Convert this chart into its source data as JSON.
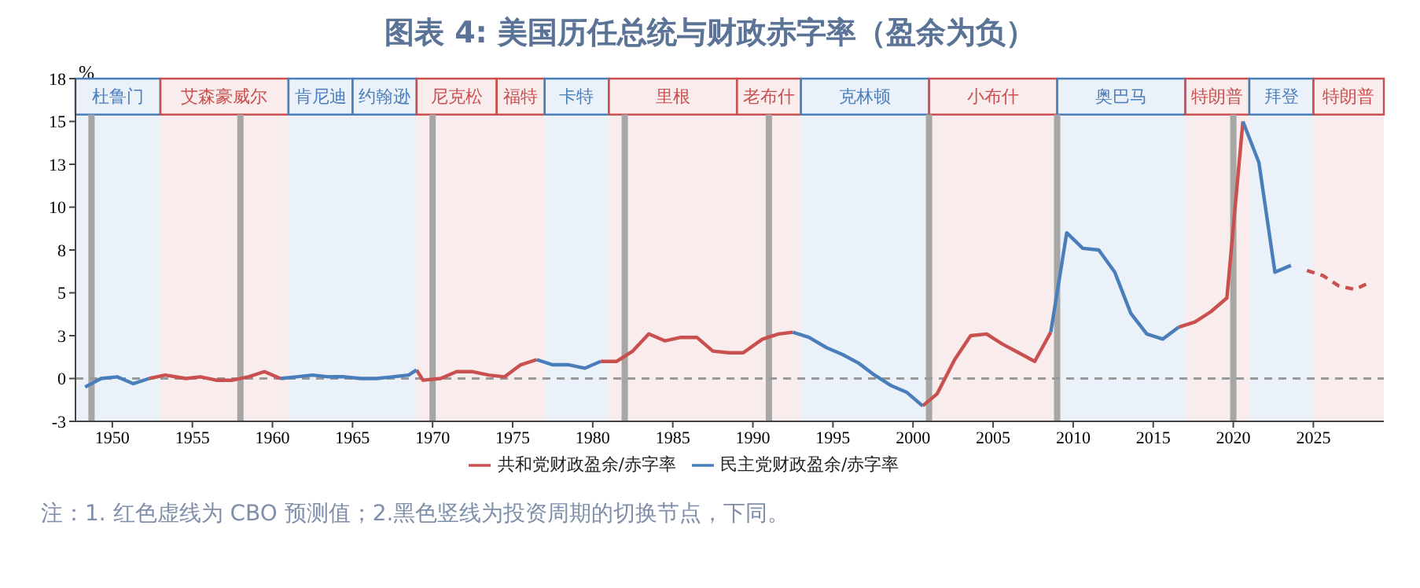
{
  "chart_data": {
    "type": "line",
    "title": "图表 4: 美国历任总统与财政赤字率（盈余为负）",
    "ylabel": "%",
    "annotations": [
      "注：1. 红色虚线为 CBO 预测值；2.黑色竖线为投资周期的切换节点，下同。"
    ],
    "xlim": [
      1947.7,
      2029.4
    ],
    "xticks": [
      1950,
      1955,
      1960,
      1965,
      1970,
      1975,
      1980,
      1985,
      1990,
      1995,
      2000,
      2005,
      2010,
      2015,
      2020,
      2025
    ],
    "ylim": [
      -2.5,
      17.5
    ],
    "yticks": [
      {
        "value": -2.5,
        "label": "-3"
      },
      0,
      {
        "value": 2.5,
        "label": "3"
      },
      5,
      {
        "value": 7.5,
        "label": "8"
      },
      10,
      {
        "value": 12.5,
        "label": "13"
      },
      15,
      {
        "value": 17.5,
        "label": "18"
      }
    ],
    "legend": "bottom",
    "series": [
      {
        "name": "共和党财政盈余/赤字率",
        "color": "#c9504f",
        "line_style": "solid",
        "x": [
          1952.3,
          1953.3,
          1954.6,
          1955.5,
          1956.5,
          1957.5,
          1958.5,
          1959.5,
          1960.5,
          1965,
          1969,
          1969.4,
          1970.5,
          1971.5,
          1972.5,
          1973.5,
          1974.5,
          1975.5,
          1976.5,
          1978,
          1980.5,
          1981.5,
          1982.5,
          1983.5,
          1984.5,
          1985.5,
          1986.5,
          1987.5,
          1988.5,
          1989.4,
          1990.6,
          1991.6,
          1992.5,
          1996,
          2000.6,
          2001.5,
          2002.6,
          2003.6,
          2004.6,
          2005.6,
          2006.6,
          2007.6,
          2008.6,
          2013,
          2016.6,
          2017.6,
          2018.6,
          2019.6,
          2020.6
        ],
        "values": [
          0.0,
          0.2,
          0.0,
          0.1,
          -0.1,
          -0.1,
          0.1,
          0.4,
          0.0,
          null,
          0.5,
          -0.1,
          0.0,
          0.4,
          0.4,
          0.2,
          0.1,
          0.8,
          1.1,
          null,
          1.0,
          1.0,
          1.6,
          2.6,
          2.2,
          2.4,
          2.4,
          1.6,
          1.5,
          1.5,
          2.3,
          2.6,
          2.7,
          null,
          -1.6,
          -0.9,
          1.1,
          2.5,
          2.6,
          2.0,
          1.5,
          1.0,
          2.7,
          null,
          3.0,
          3.3,
          3.9,
          4.7,
          15.0
        ]
      },
      {
        "name": "民主党财政盈余/赤字率",
        "color": "#4a7ebb",
        "line_style": "solid",
        "x": [
          1948.3,
          1949.3,
          1950.3,
          1951.3,
          1952.3,
          1956,
          1960.5,
          1961.5,
          1962.5,
          1963.5,
          1964.5,
          1965.5,
          1966.5,
          1967.5,
          1968.5,
          1969,
          1973,
          1976.5,
          1977.5,
          1978.5,
          1979.5,
          1980.5,
          1987,
          1992.5,
          1993.5,
          1994.6,
          1995.6,
          1996.6,
          1997.6,
          1998.6,
          1999.6,
          2000.6,
          2005,
          2008.6,
          2009.6,
          2010.6,
          2011.6,
          2012.6,
          2013.6,
          2014.6,
          2015.6,
          2016.6,
          2018,
          2020.6,
          2021.6,
          2022.6,
          2023.6
        ],
        "values": [
          -0.5,
          0.0,
          0.1,
          -0.3,
          0.0,
          null,
          0.0,
          0.1,
          0.2,
          0.1,
          0.1,
          0.0,
          0.0,
          0.1,
          0.2,
          0.5,
          null,
          1.1,
          0.8,
          0.8,
          0.6,
          1.0,
          null,
          2.7,
          2.4,
          1.8,
          1.4,
          0.9,
          0.2,
          -0.4,
          -0.8,
          -1.6,
          null,
          2.7,
          8.5,
          7.6,
          7.5,
          6.2,
          3.8,
          2.6,
          2.3,
          3.0,
          null,
          15.0,
          12.6,
          6.2,
          6.6
        ]
      },
      {
        "color": "#c9504f",
        "line_style": "dashed",
        "x": [
          2024.6,
          2025.6,
          2026.6,
          2027.6,
          2028.5
        ],
        "values": [
          6.3,
          6.0,
          5.4,
          5.2,
          5.6
        ]
      }
    ],
    "bands": [
      {
        "axis": "x",
        "from": 1947.7,
        "to": 1953,
        "label": "杜鲁门",
        "color": "#4a7ebb"
      },
      {
        "axis": "x",
        "from": 1953,
        "to": 1961,
        "label": "艾森豪威尔",
        "color": "#c9504f"
      },
      {
        "axis": "x",
        "from": 1961,
        "to": 1965,
        "label": "肯尼迪",
        "color": "#4a7ebb"
      },
      {
        "axis": "x",
        "from": 1965,
        "to": 1969,
        "label": "约翰逊",
        "color": "#4a7ebb"
      },
      {
        "axis": "x",
        "from": 1969,
        "to": 1974,
        "label": "尼克松",
        "color": "#c9504f"
      },
      {
        "axis": "x",
        "from": 1974,
        "to": 1977,
        "label": "福特",
        "color": "#c9504f"
      },
      {
        "axis": "x",
        "from": 1977,
        "to": 1981,
        "label": "卡特",
        "color": "#4a7ebb"
      },
      {
        "axis": "x",
        "from": 1981,
        "to": 1989,
        "label": "里根",
        "color": "#c9504f"
      },
      {
        "axis": "x",
        "from": 1989,
        "to": 1993,
        "label": "老布什",
        "color": "#c9504f"
      },
      {
        "axis": "x",
        "from": 1993,
        "to": 2001,
        "label": "克林顿",
        "color": "#4a7ebb"
      },
      {
        "axis": "x",
        "from": 2001,
        "to": 2009,
        "label": "小布什",
        "color": "#c9504f"
      },
      {
        "axis": "x",
        "from": 2009,
        "to": 2017,
        "label": "奥巴马",
        "color": "#4a7ebb"
      },
      {
        "axis": "x",
        "from": 2017,
        "to": 2021,
        "label": "特朗普",
        "color": "#c9504f"
      },
      {
        "axis": "x",
        "from": 2021,
        "to": 2025,
        "label": "拜登",
        "color": "#4a7ebb"
      },
      {
        "axis": "x",
        "from": 2025,
        "to": 2029.4,
        "label": "特朗普",
        "color": "#c9504f"
      }
    ],
    "ref_lines": [
      {
        "axis": "x",
        "value": 1948.7,
        "color": "#a6a6a6"
      },
      {
        "axis": "x",
        "value": 1958,
        "color": "#a6a6a6"
      },
      {
        "axis": "x",
        "value": 1970,
        "color": "#a6a6a6"
      },
      {
        "axis": "x",
        "value": 1982,
        "color": "#a6a6a6"
      },
      {
        "axis": "x",
        "value": 1991,
        "color": "#a6a6a6"
      },
      {
        "axis": "x",
        "value": 2001,
        "color": "#a6a6a6"
      },
      {
        "axis": "x",
        "value": 2009,
        "color": "#a6a6a6"
      },
      {
        "axis": "x",
        "value": 2020,
        "color": "#a6a6a6"
      },
      {
        "axis": "y",
        "value": 0,
        "color": "#999999",
        "line_style": "dashed"
      }
    ]
  }
}
